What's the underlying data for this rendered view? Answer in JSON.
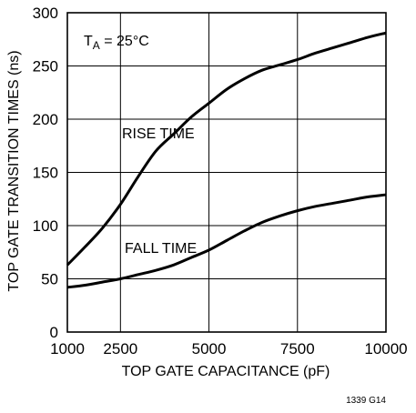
{
  "chart_data": {
    "type": "line",
    "xlabel": "TOP GATE CAPACITANCE (pF)",
    "ylabel": "TOP GATE TRANSITION TIMES (ns)",
    "xlim": [
      1000,
      10000
    ],
    "ylim": [
      0,
      300
    ],
    "x_ticks": [
      1000,
      2500,
      5000,
      7500,
      10000
    ],
    "y_ticks": [
      0,
      50,
      100,
      150,
      200,
      250,
      300
    ],
    "x_tick_labels": [
      "1000",
      "2500",
      "5000",
      "7500",
      "10000"
    ],
    "y_tick_labels": [
      "0",
      "50",
      "100",
      "150",
      "200",
      "250",
      "300"
    ],
    "grid": true,
    "condition": {
      "prefix": "T",
      "subscript": "A",
      "value": " = 25°C"
    },
    "series": [
      {
        "name": "RISE TIME",
        "x": [
          1000,
          1500,
          2000,
          2500,
          3000,
          3500,
          4000,
          4500,
          5000,
          5500,
          6000,
          6500,
          7000,
          7500,
          8000,
          8500,
          9000,
          9500,
          10000
        ],
        "values": [
          63,
          80,
          98,
          120,
          146,
          170,
          186,
          202,
          215,
          228,
          238,
          246,
          251,
          256,
          262,
          267,
          272,
          277,
          281
        ]
      },
      {
        "name": "FALL TIME",
        "x": [
          1000,
          1500,
          2000,
          2500,
          3000,
          3500,
          4000,
          4500,
          5000,
          5500,
          6000,
          6500,
          7000,
          7500,
          8000,
          8500,
          9000,
          9500,
          10000
        ],
        "values": [
          42,
          44,
          47,
          50,
          54,
          58,
          63,
          70,
          77,
          86,
          95,
          103,
          109,
          114,
          118,
          121,
          124,
          127,
          129
        ]
      }
    ],
    "figure_code": "1339 G14"
  }
}
